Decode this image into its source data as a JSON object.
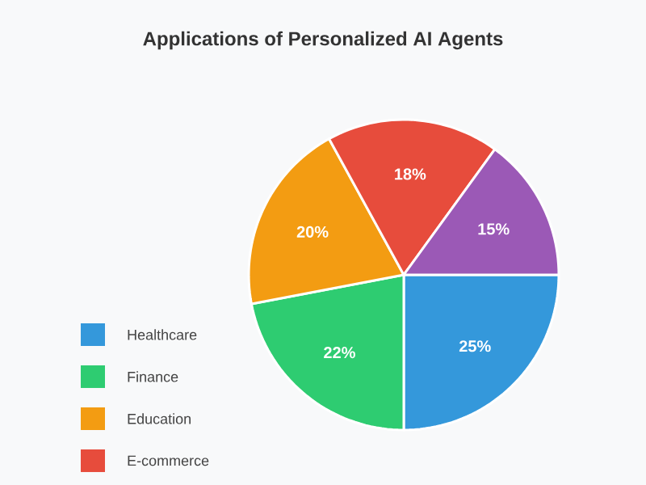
{
  "chart_data": {
    "type": "pie",
    "title": "Applications of Personalized AI Agents",
    "categories": [
      "Healthcare",
      "Finance",
      "Education",
      "E-commerce",
      null
    ],
    "values": [
      25,
      22,
      20,
      18,
      15
    ],
    "value_labels": [
      "25%",
      "22%",
      "20%",
      "18%",
      "15%"
    ],
    "colors": [
      "#3498db",
      "#2ecc71",
      "#f39c12",
      "#e74c3c",
      "#9b59b6"
    ],
    "legend": "bottom left"
  }
}
